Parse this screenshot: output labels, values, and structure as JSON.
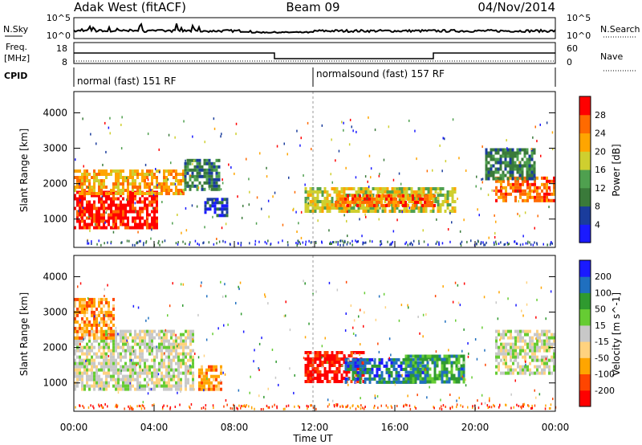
{
  "header": {
    "station": "Adak West (fitACF)",
    "beam": "Beam 09",
    "date": "04/Nov/2014"
  },
  "noise_panel": {
    "left_label": "N.Sky",
    "right_label": "N.Search",
    "left_ticks": [
      "10^5",
      "10^0"
    ],
    "right_ticks": [
      "10^5",
      "10^0"
    ]
  },
  "freq_panel": {
    "left_label_line1": "Freq.",
    "left_label_line2": "[MHz]",
    "right_label": "Nave",
    "left_ticks": [
      "18",
      "8"
    ],
    "right_ticks": [
      "60",
      "0"
    ]
  },
  "cpid_panel": {
    "label": "CPID",
    "mode1": "normal (fast) 151 RF",
    "mode2": "normalsound (fast) 157 RF"
  },
  "colors": {
    "power": [
      "#1a1aff",
      "#1a3c9c",
      "#3a7a3a",
      "#4fa04f",
      "#cfcf2f",
      "#ffa500",
      "#ff6a00",
      "#ff0000"
    ],
    "velocity": [
      "#ff0000",
      "#ff4500",
      "#ffa500",
      "#ffd27f",
      "#c8c8c8",
      "#66cc33",
      "#2f9a2f",
      "#1f6fbf",
      "#1a1aff"
    ]
  },
  "chart_data": [
    {
      "type": "heatmap",
      "quantity": "Power",
      "ylabel": "Slant Range [km]",
      "yticks": [
        "1000",
        "2000",
        "3000",
        "4000"
      ],
      "ylim": [
        200,
        4600
      ],
      "colorbar_label": "Power [dB]",
      "colorbar_ticks": [
        "4",
        "8",
        "12",
        "16",
        "20",
        "24",
        "28"
      ],
      "regions": [
        {
          "t0": 0,
          "t1": 4.2,
          "r0": 800,
          "r1": 1800,
          "level": 7
        },
        {
          "t0": 0,
          "t1": 5.5,
          "r0": 1700,
          "r1": 2400,
          "level": 5
        },
        {
          "t0": 5.5,
          "t1": 7.3,
          "r0": 1800,
          "r1": 2700,
          "level": 2
        },
        {
          "t0": 6.5,
          "t1": 7.6,
          "r0": 1100,
          "r1": 1600,
          "level": 1
        },
        {
          "t0": 11.5,
          "t1": 19,
          "r0": 1200,
          "r1": 1900,
          "level": 4
        },
        {
          "t0": 13,
          "t1": 18,
          "r0": 1350,
          "r1": 1700,
          "level": 6
        },
        {
          "t0": 21,
          "t1": 24,
          "r0": 1500,
          "r1": 2200,
          "level": 6
        },
        {
          "t0": 20.5,
          "t1": 23,
          "r0": 2100,
          "r1": 3000,
          "level": 2
        }
      ]
    },
    {
      "type": "heatmap",
      "quantity": "Velocity",
      "ylabel": "Slant Range [km]",
      "yticks": [
        "1000",
        "2000",
        "3000",
        "4000"
      ],
      "ylim": [
        200,
        4600
      ],
      "colorbar_label": "Velocity [m s^-1]",
      "colorbar_ticks": [
        "-200",
        "-100",
        "-50",
        "-15",
        "15",
        "50",
        "100",
        "200"
      ],
      "xlabel": "Time UT",
      "xticks": [
        "00:00",
        "04:00",
        "08:00",
        "12:00",
        "16:00",
        "20:00",
        "00:00"
      ],
      "xlim": [
        0,
        24
      ],
      "regions": [
        {
          "t0": 0,
          "t1": 6,
          "r0": 800,
          "r1": 2500,
          "level": 4
        },
        {
          "t0": 6.2,
          "t1": 7.3,
          "r0": 800,
          "r1": 1500,
          "level": 2
        },
        {
          "t0": 11.5,
          "t1": 14.5,
          "r0": 1000,
          "r1": 1900,
          "level": 0
        },
        {
          "t0": 13.5,
          "t1": 17.5,
          "r0": 1000,
          "r1": 1700,
          "level": 7
        },
        {
          "t0": 16.5,
          "t1": 19.5,
          "r0": 1000,
          "r1": 1800,
          "level": 6
        },
        {
          "t0": 21,
          "t1": 24,
          "r0": 1300,
          "r1": 2500,
          "level": 4
        },
        {
          "t0": 0,
          "t1": 2,
          "r0": 2300,
          "r1": 3400,
          "level": 2
        }
      ]
    }
  ]
}
